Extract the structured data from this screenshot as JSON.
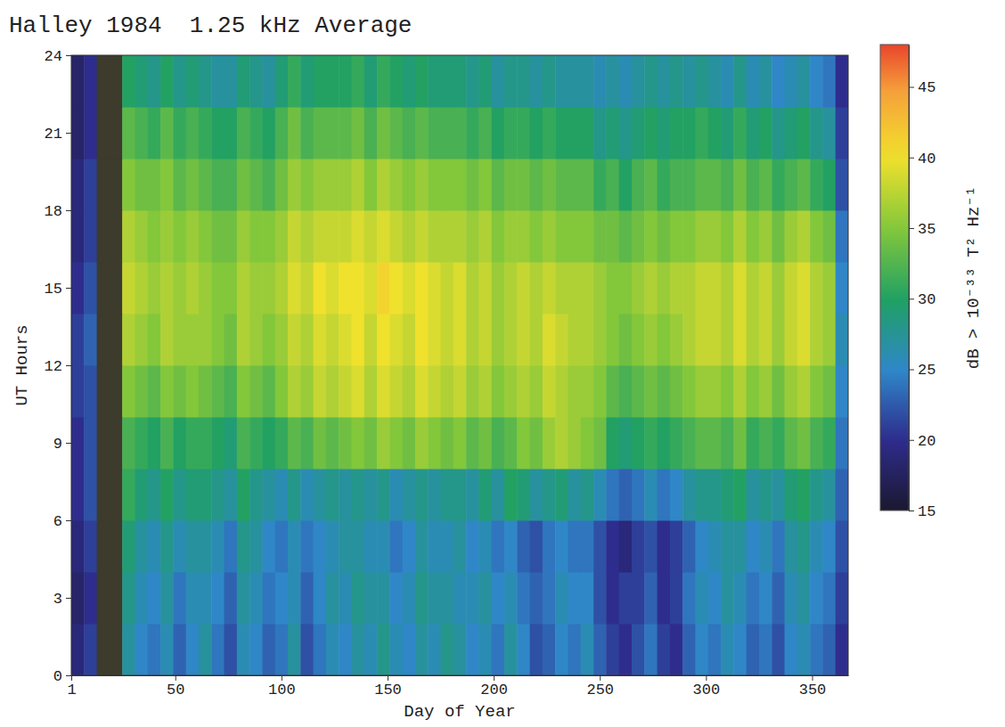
{
  "chart_data": {
    "type": "heatmap",
    "title": "Halley 1984  1.25 kHz Average",
    "xlabel": "Day of Year",
    "ylabel": "UT Hours",
    "xlim": [
      1,
      367
    ],
    "ylim": [
      0,
      24
    ],
    "xticks": [
      1,
      50,
      100,
      150,
      200,
      250,
      300,
      350
    ],
    "yticks": [
      0,
      3,
      6,
      9,
      12,
      15,
      18,
      21,
      24
    ],
    "x": [
      1,
      7,
      13,
      19,
      25,
      31,
      37,
      43,
      49,
      55,
      61,
      67,
      73,
      79,
      85,
      91,
      97,
      103,
      109,
      115,
      121,
      127,
      133,
      139,
      145,
      151,
      157,
      163,
      169,
      175,
      181,
      187,
      193,
      199,
      205,
      211,
      217,
      223,
      229,
      235,
      241,
      247,
      253,
      259,
      265,
      271,
      277,
      283,
      289,
      295,
      301,
      307,
      313,
      319,
      325,
      331,
      337,
      343,
      349,
      355,
      361
    ],
    "y": [
      0,
      2,
      4,
      6,
      8,
      10,
      12,
      14,
      16,
      18,
      20,
      22
    ],
    "z": [
      [
        19,
        21,
        null,
        null,
        27,
        25,
        24,
        26,
        23,
        25,
        27,
        24,
        22,
        26,
        25,
        23,
        24,
        27,
        22,
        24,
        26,
        25,
        27,
        26,
        28,
        26,
        25,
        27,
        26,
        28,
        27,
        25,
        26,
        24,
        27,
        25,
        22,
        23,
        25,
        24,
        26,
        23,
        21,
        20,
        22,
        24,
        21,
        20,
        23,
        25,
        24,
        26,
        25,
        23,
        24,
        22,
        25,
        26,
        24,
        23,
        20
      ],
      [
        18,
        20,
        null,
        null,
        28,
        26,
        25,
        27,
        24,
        26,
        26,
        25,
        23,
        27,
        26,
        24,
        25,
        26,
        23,
        25,
        27,
        26,
        28,
        27,
        27,
        25,
        26,
        28,
        27,
        27,
        26,
        26,
        27,
        25,
        26,
        24,
        23,
        24,
        26,
        25,
        25,
        22,
        20,
        21,
        21,
        23,
        20,
        21,
        24,
        26,
        25,
        27,
        26,
        24,
        25,
        23,
        26,
        27,
        25,
        24,
        21
      ],
      [
        19,
        21,
        null,
        null,
        29,
        27,
        26,
        28,
        26,
        27,
        27,
        26,
        24,
        28,
        27,
        25,
        24,
        26,
        24,
        25,
        26,
        27,
        27,
        26,
        26,
        24,
        25,
        27,
        26,
        26,
        27,
        25,
        26,
        24,
        25,
        23,
        22,
        24,
        25,
        24,
        24,
        22,
        20,
        19,
        21,
        22,
        20,
        21,
        23,
        25,
        26,
        27,
        27,
        25,
        26,
        24,
        27,
        28,
        26,
        25,
        22
      ],
      [
        20,
        22,
        null,
        null,
        31,
        29,
        28,
        30,
        28,
        29,
        29,
        28,
        27,
        30,
        28,
        27,
        26,
        28,
        26,
        27,
        28,
        27,
        28,
        27,
        28,
        26,
        27,
        28,
        27,
        28,
        28,
        27,
        29,
        27,
        30,
        29,
        27,
        28,
        29,
        27,
        28,
        26,
        24,
        23,
        24,
        26,
        24,
        25,
        27,
        28,
        28,
        29,
        30,
        27,
        28,
        27,
        29,
        30,
        28,
        27,
        23
      ],
      [
        20,
        22,
        null,
        null,
        32,
        31,
        30,
        32,
        30,
        31,
        31,
        30,
        29,
        32,
        31,
        30,
        31,
        33,
        32,
        34,
        33,
        34,
        35,
        34,
        36,
        35,
        34,
        36,
        35,
        34,
        35,
        33,
        34,
        32,
        33,
        35,
        34,
        36,
        37,
        36,
        35,
        34,
        30,
        29,
        30,
        31,
        30,
        31,
        32,
        33,
        33,
        32,
        34,
        31,
        32,
        31,
        33,
        34,
        32,
        31,
        24
      ],
      [
        21,
        22,
        null,
        null,
        35,
        34,
        33,
        35,
        34,
        35,
        34,
        33,
        32,
        35,
        34,
        33,
        35,
        37,
        36,
        38,
        37,
        38,
        39,
        37,
        39,
        38,
        37,
        39,
        38,
        37,
        38,
        36,
        37,
        35,
        36,
        37,
        36,
        38,
        37,
        36,
        36,
        35,
        33,
        32,
        33,
        34,
        33,
        34,
        35,
        36,
        36,
        35,
        37,
        35,
        36,
        34,
        36,
        37,
        35,
        34,
        25
      ],
      [
        21,
        23,
        null,
        null,
        37,
        36,
        35,
        37,
        36,
        36,
        36,
        35,
        34,
        37,
        36,
        35,
        36,
        38,
        37,
        39,
        38,
        39,
        40,
        38,
        40,
        39,
        38,
        40,
        39,
        38,
        39,
        37,
        38,
        36,
        37,
        38,
        37,
        39,
        38,
        37,
        37,
        36,
        35,
        34,
        35,
        36,
        35,
        36,
        37,
        38,
        38,
        37,
        39,
        37,
        38,
        36,
        38,
        39,
        37,
        36,
        26
      ],
      [
        20,
        22,
        null,
        null,
        38,
        37,
        36,
        37,
        36,
        37,
        36,
        35,
        35,
        37,
        36,
        36,
        37,
        39,
        38,
        40,
        39,
        40,
        40,
        39,
        41,
        40,
        39,
        40,
        39,
        38,
        39,
        37,
        38,
        36,
        37,
        38,
        37,
        38,
        37,
        37,
        37,
        36,
        35,
        35,
        36,
        37,
        36,
        37,
        37,
        38,
        38,
        37,
        39,
        37,
        38,
        36,
        38,
        39,
        37,
        36,
        25
      ],
      [
        19,
        21,
        null,
        null,
        37,
        36,
        35,
        36,
        35,
        36,
        35,
        34,
        34,
        36,
        35,
        35,
        36,
        38,
        37,
        38,
        38,
        38,
        39,
        38,
        39,
        38,
        37,
        38,
        37,
        37,
        37,
        36,
        37,
        35,
        36,
        36,
        35,
        36,
        35,
        35,
        35,
        34,
        34,
        33,
        34,
        35,
        34,
        35,
        35,
        36,
        36,
        35,
        37,
        35,
        36,
        34,
        36,
        37,
        35,
        34,
        24
      ],
      [
        19,
        21,
        null,
        null,
        35,
        34,
        34,
        35,
        33,
        34,
        33,
        32,
        32,
        34,
        33,
        32,
        34,
        36,
        35,
        36,
        36,
        36,
        37,
        35,
        37,
        36,
        35,
        36,
        35,
        35,
        35,
        34,
        35,
        33,
        34,
        34,
        33,
        34,
        33,
        33,
        33,
        31,
        32,
        30,
        32,
        33,
        31,
        32,
        32,
        33,
        33,
        32,
        34,
        32,
        33,
        31,
        32,
        33,
        31,
        30,
        22
      ],
      [
        18,
        20,
        null,
        null,
        33,
        32,
        31,
        33,
        31,
        32,
        31,
        30,
        30,
        32,
        31,
        30,
        32,
        34,
        32,
        33,
        33,
        33,
        34,
        32,
        34,
        33,
        32,
        33,
        32,
        32,
        32,
        31,
        32,
        30,
        31,
        31,
        30,
        31,
        30,
        30,
        30,
        28,
        29,
        28,
        29,
        30,
        29,
        30,
        30,
        31,
        30,
        29,
        31,
        29,
        30,
        28,
        29,
        30,
        28,
        27,
        21
      ],
      [
        18,
        20,
        null,
        null,
        30,
        29,
        28,
        30,
        28,
        29,
        28,
        27,
        27,
        29,
        28,
        27,
        29,
        31,
        29,
        30,
        30,
        30,
        31,
        29,
        31,
        30,
        29,
        30,
        29,
        29,
        29,
        28,
        29,
        27,
        28,
        28,
        27,
        28,
        27,
        27,
        27,
        26,
        27,
        26,
        27,
        28,
        27,
        28,
        27,
        28,
        27,
        26,
        28,
        26,
        27,
        25,
        26,
        27,
        25,
        24,
        20
      ]
    ],
    "colorbar": {
      "label": "dB > 10⁻³³ T² Hz⁻¹",
      "range": [
        15,
        48
      ],
      "ticks": [
        15,
        20,
        25,
        30,
        35,
        40,
        45
      ]
    }
  }
}
